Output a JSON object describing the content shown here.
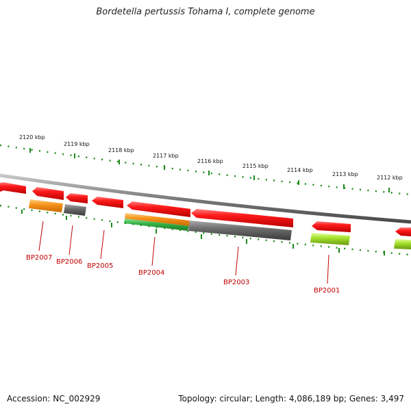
{
  "title": "Bordetella pertussis Tohama I, complete genome",
  "footer": {
    "accession": "Accession: NC_002929",
    "summary": "Topology: circular; Length: 4,086,189 bp; Genes: 3,497"
  },
  "colors": {
    "forward_gene": "#ee1c1c",
    "reverse_orange": "#f7941d",
    "reverse_grey": "#6d6d6d",
    "reverse_green": "#39b54a",
    "reverse_lime": "#a6e22e",
    "backbone": "#8a8a8a",
    "ticks": "#1a8a1a",
    "gene_label": "#c00000"
  },
  "scale_labels": [
    "2120 kbp",
    "2119 kbp",
    "2118 kbp",
    "2117 kbp",
    "2116 kbp",
    "2115 kbp",
    "2114 kbp",
    "2113 kbp",
    "2112 kbp"
  ],
  "gene_labels": [
    "BP2007",
    "BP2006",
    "BP2005",
    "BP2004",
    "BP2003",
    "BP2001"
  ]
}
